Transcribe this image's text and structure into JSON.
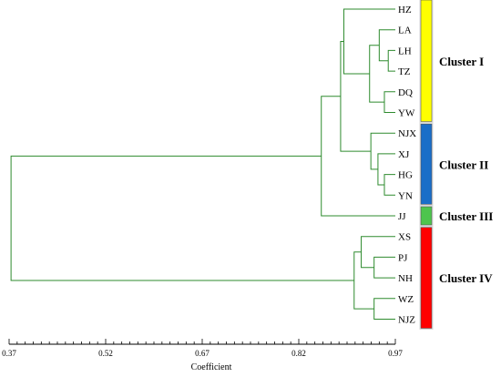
{
  "chart_data": {
    "type": "dendrogram",
    "xlabel": "Coefficient",
    "xlim": [
      0.37,
      0.97
    ],
    "ticks": [
      "0.37",
      "0.52",
      "0.67",
      "0.82",
      "0.97"
    ],
    "leaves": [
      "HZ",
      "LA",
      "LH",
      "TZ",
      "DQ",
      "YW",
      "NJX",
      "XJ",
      "HG",
      "YN",
      "JJ",
      "XS",
      "PJ",
      "NH",
      "WZ",
      "NJZ"
    ],
    "merges": [
      {
        "children": [
          "LH",
          "TZ"
        ],
        "height": 0.959
      },
      {
        "children": [
          "LA",
          "LH+TZ"
        ],
        "height": 0.945
      },
      {
        "children": [
          "DQ",
          "YW"
        ],
        "height": 0.953
      },
      {
        "children": [
          "LA+LH+TZ",
          "DQ+YW"
        ],
        "height": 0.93
      },
      {
        "children": [
          "HZ",
          "LA+LH+TZ+DQ+YW"
        ],
        "height": 0.89
      },
      {
        "children": [
          "HG",
          "YN"
        ],
        "height": 0.953
      },
      {
        "children": [
          "XJ",
          "HG+YN"
        ],
        "height": 0.943
      },
      {
        "children": [
          "NJX",
          "XJ+HG+YN"
        ],
        "height": 0.932
      },
      {
        "children": [
          "Cluster I",
          "Cluster II"
        ],
        "height": 0.885
      },
      {
        "children": [
          "Cluster I+II",
          "JJ"
        ],
        "height": 0.855
      },
      {
        "children": [
          "PJ",
          "NH"
        ],
        "height": 0.937
      },
      {
        "children": [
          "XS",
          "PJ+NH"
        ],
        "height": 0.917
      },
      {
        "children": [
          "WZ",
          "NJZ"
        ],
        "height": 0.937
      },
      {
        "children": [
          "XS+PJ+NH",
          "WZ+NJZ"
        ],
        "height": 0.906
      },
      {
        "children": [
          "Cluster I+II+III",
          "Cluster IV"
        ],
        "height": 0.373
      }
    ],
    "clusters": [
      {
        "name": "Cluster I",
        "members": [
          "HZ",
          "LA",
          "LH",
          "TZ",
          "DQ",
          "YW"
        ],
        "color": "#ffff00"
      },
      {
        "name": "Cluster II",
        "members": [
          "NJX",
          "XJ",
          "HG",
          "YN"
        ],
        "color": "#1a6ec8"
      },
      {
        "name": "Cluster III",
        "members": [
          "JJ"
        ],
        "color": "#4dc54d"
      },
      {
        "name": "Cluster IV",
        "members": [
          "XS",
          "PJ",
          "NH",
          "WZ",
          "NJZ"
        ],
        "color": "#ff0000"
      }
    ],
    "line_color": "#2e8b2e"
  }
}
